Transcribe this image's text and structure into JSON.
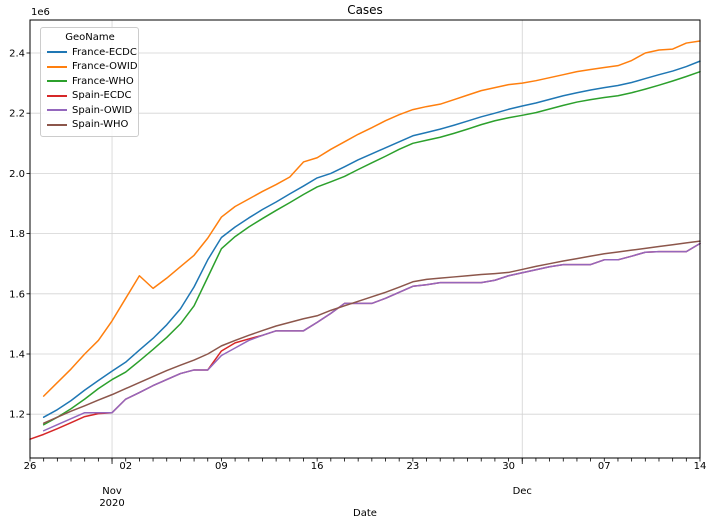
{
  "title": "Cases",
  "offset_label": "1e6",
  "xlabel": "Date",
  "legend": {
    "title": "GeoName",
    "entries": [
      {
        "label": "France-ECDC",
        "color": "#1f77b4"
      },
      {
        "label": "France-OWID",
        "color": "#ff7f0e"
      },
      {
        "label": "France-WHO",
        "color": "#2ca02c"
      },
      {
        "label": "Spain-ECDC",
        "color": "#d62728"
      },
      {
        "label": "Spain-OWID",
        "color": "#9467bd"
      },
      {
        "label": "Spain-WHO",
        "color": "#8c564b"
      }
    ]
  },
  "chart_data": {
    "type": "line",
    "title": "Cases",
    "xlabel": "Date",
    "ylabel": "",
    "y_unit_multiplier": "1e6",
    "x_start_date": "2020-10-26",
    "x_end_date": "2020-12-14",
    "x_days_total": 49,
    "ylim": [
      1.054,
      2.51
    ],
    "grid": true,
    "legend_position": "upper left",
    "y_ticks": [
      1.2,
      1.4,
      1.6,
      1.8,
      2.0,
      2.2,
      2.4
    ],
    "x_week_ticks": [
      {
        "day": 0,
        "label": "26"
      },
      {
        "day": 7,
        "label": "02"
      },
      {
        "day": 14,
        "label": "09"
      },
      {
        "day": 21,
        "label": "16"
      },
      {
        "day": 28,
        "label": "23"
      },
      {
        "day": 35,
        "label": "30"
      },
      {
        "day": 42,
        "label": "07"
      },
      {
        "day": 49,
        "label": "14"
      }
    ],
    "x_month_ticks": [
      {
        "day": 6,
        "label": "Nov",
        "sublabel": "2020"
      },
      {
        "day": 36,
        "label": "Dec",
        "sublabel": ""
      }
    ],
    "series": [
      {
        "name": "France-ECDC",
        "color": "#1f77b4",
        "start_day": 1,
        "values": [
          1.19,
          1.215,
          1.245,
          1.28,
          1.312,
          1.343,
          1.373,
          1.413,
          1.452,
          1.497,
          1.55,
          1.623,
          1.713,
          1.787,
          1.822,
          1.852,
          1.88,
          1.905,
          1.932,
          1.958,
          1.985,
          2.0,
          2.022,
          2.045,
          2.065,
          2.085,
          2.105,
          2.125,
          2.136,
          2.147,
          2.16,
          2.174,
          2.188,
          2.2,
          2.213,
          2.224,
          2.234,
          2.246,
          2.258,
          2.268,
          2.277,
          2.285,
          2.292,
          2.302,
          2.315,
          2.328,
          2.34,
          2.355,
          2.373
        ]
      },
      {
        "name": "France-OWID",
        "color": "#ff7f0e",
        "start_day": 1,
        "values": [
          1.26,
          1.305,
          1.35,
          1.4,
          1.445,
          1.51,
          1.585,
          1.66,
          1.618,
          1.652,
          1.69,
          1.728,
          1.785,
          1.855,
          1.89,
          1.915,
          1.94,
          1.963,
          1.988,
          2.038,
          2.052,
          2.08,
          2.105,
          2.13,
          2.152,
          2.175,
          2.195,
          2.212,
          2.222,
          2.23,
          2.245,
          2.26,
          2.275,
          2.285,
          2.295,
          2.3,
          2.308,
          2.318,
          2.328,
          2.338,
          2.345,
          2.352,
          2.358,
          2.375,
          2.4,
          2.41,
          2.413,
          2.433,
          2.44
        ]
      },
      {
        "name": "France-WHO",
        "color": "#2ca02c",
        "start_day": 1,
        "values": [
          1.165,
          1.19,
          1.218,
          1.25,
          1.285,
          1.315,
          1.34,
          1.377,
          1.415,
          1.455,
          1.5,
          1.56,
          1.655,
          1.75,
          1.79,
          1.822,
          1.85,
          1.877,
          1.903,
          1.93,
          1.955,
          1.972,
          1.99,
          2.013,
          2.035,
          2.057,
          2.08,
          2.1,
          2.11,
          2.12,
          2.133,
          2.147,
          2.162,
          2.175,
          2.185,
          2.193,
          2.202,
          2.214,
          2.226,
          2.237,
          2.245,
          2.252,
          2.258,
          2.268,
          2.28,
          2.293,
          2.307,
          2.322,
          2.338
        ]
      },
      {
        "name": "Spain-ECDC",
        "color": "#d62728",
        "start_day": 0,
        "values": [
          1.117,
          1.133,
          1.152,
          1.172,
          1.192,
          1.202,
          1.205,
          1.25,
          1.272,
          1.295,
          1.315,
          1.335,
          1.347,
          1.347,
          1.41,
          1.437,
          1.45,
          1.462,
          1.477,
          1.477,
          1.477,
          1.505,
          1.535,
          1.568,
          1.568,
          1.568,
          1.585,
          1.605,
          1.625,
          1.63,
          1.637,
          1.637,
          1.637,
          1.637,
          1.645,
          1.66,
          1.67,
          1.68,
          1.69,
          1.697,
          1.697,
          1.697,
          1.713,
          1.713,
          1.725,
          1.738,
          1.74,
          1.74,
          1.74,
          1.767
        ]
      },
      {
        "name": "Spain-OWID",
        "color": "#9467bd",
        "start_day": 1,
        "values": [
          1.145,
          1.165,
          1.185,
          1.205,
          1.205,
          1.205,
          1.25,
          1.272,
          1.295,
          1.315,
          1.335,
          1.347,
          1.347,
          1.395,
          1.42,
          1.445,
          1.462,
          1.477,
          1.477,
          1.477,
          1.505,
          1.535,
          1.568,
          1.568,
          1.568,
          1.585,
          1.605,
          1.625,
          1.63,
          1.637,
          1.637,
          1.637,
          1.637,
          1.645,
          1.66,
          1.67,
          1.68,
          1.69,
          1.697,
          1.697,
          1.697,
          1.713,
          1.713,
          1.725,
          1.738,
          1.74,
          1.74,
          1.74,
          1.767
        ]
      },
      {
        "name": "Spain-WHO",
        "color": "#8c564b",
        "start_day": 1,
        "values": [
          1.17,
          1.19,
          1.21,
          1.228,
          1.247,
          1.265,
          1.285,
          1.305,
          1.325,
          1.345,
          1.363,
          1.38,
          1.4,
          1.427,
          1.445,
          1.462,
          1.478,
          1.493,
          1.505,
          1.517,
          1.527,
          1.545,
          1.56,
          1.575,
          1.59,
          1.605,
          1.622,
          1.64,
          1.648,
          1.652,
          1.656,
          1.66,
          1.664,
          1.667,
          1.671,
          1.681,
          1.691,
          1.7,
          1.709,
          1.717,
          1.725,
          1.733,
          1.739,
          1.745,
          1.751,
          1.757,
          1.763,
          1.769,
          1.775
        ]
      }
    ]
  }
}
